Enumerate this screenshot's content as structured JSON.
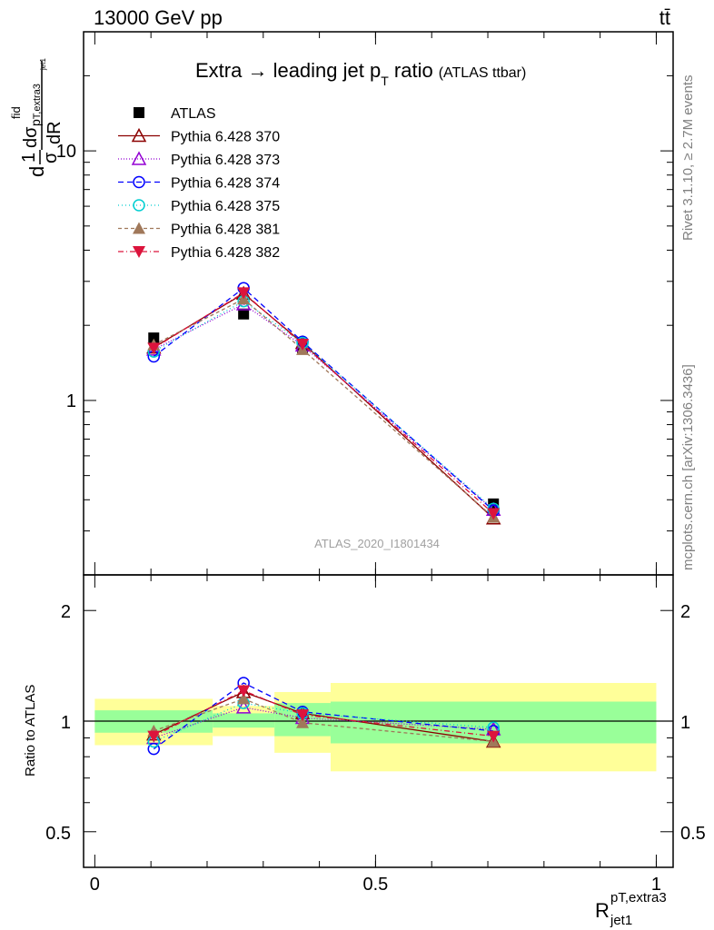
{
  "header": {
    "left": "13000 GeV pp",
    "right": "tt̄"
  },
  "side_labels": {
    "rivet": "Rivet 3.1.10, ≥ 2.7M events",
    "mcplots": "mcplots.cern.ch [arXiv:1306.3436]"
  },
  "colors": {
    "ATLAS": "#000000",
    "Pythia 6.428 370": "#8b0000",
    "Pythia 6.428 373": "#9400d3",
    "Pythia 6.428 374": "#0000ff",
    "Pythia 6.428 375": "#00ced1",
    "Pythia 6.428 381": "#a0785a",
    "Pythia 6.428 382": "#dc143c",
    "band_inner": "#99ff99",
    "band_outer": "#ffff99"
  },
  "chart_data": [
    {
      "type": "line",
      "title": "Extra → leading jet p",
      "title_sub": "T",
      "title_tail": " ratio",
      "title_small": "(ATLAS ttbar)",
      "ylabel": {
        "frac1_num": "1",
        "frac1_den": "σ",
        "d1": "d",
        "sigma": "σ",
        "sigma_sup": "fid",
        "sigma_sub": "p",
        "sub2": "T,extra3",
        "sub3": "jet1",
        "frac2_den": "dR"
      },
      "watermark": "ATLAS_2020_I1801434",
      "yscale": "log",
      "xlim": [
        -0.02,
        1.03
      ],
      "ylim": [
        0.2,
        30
      ],
      "yticks": [
        {
          "v": 1,
          "label": "1"
        },
        {
          "v": 10,
          "label": "10"
        }
      ],
      "x": [
        0.105,
        0.265,
        0.37,
        0.71
      ],
      "series": [
        {
          "name": "ATLAS",
          "marker": "square",
          "dash": "",
          "values": [
            1.78,
            2.22,
            1.62,
            0.385
          ]
        },
        {
          "name": "Pythia 6.428 370",
          "marker": "triangle-open",
          "dash": "",
          "values": [
            1.63,
            2.68,
            1.7,
            0.337
          ]
        },
        {
          "name": "Pythia 6.428 373",
          "marker": "triangle-open",
          "dash": "1,2",
          "values": [
            1.6,
            2.43,
            1.66,
            0.365
          ]
        },
        {
          "name": "Pythia 6.428 374",
          "marker": "circle-open",
          "dash": "6,4",
          "values": [
            1.5,
            2.82,
            1.72,
            0.362
          ]
        },
        {
          "name": "Pythia 6.428 375",
          "marker": "circle-open",
          "dash": "1,3",
          "values": [
            1.57,
            2.5,
            1.7,
            0.368
          ]
        },
        {
          "name": "Pythia 6.428 381",
          "marker": "triangle-filled",
          "dash": "4,3",
          "values": [
            1.67,
            2.55,
            1.6,
            0.34
          ]
        },
        {
          "name": "Pythia 6.428 382",
          "marker": "triangle-down-filled",
          "dash": "6,3,1,3",
          "values": [
            1.62,
            2.7,
            1.68,
            0.352
          ]
        }
      ]
    },
    {
      "type": "line",
      "ylabel": "Ratio to ATLAS",
      "xlabel": "R",
      "xlabel_sup": "pT,extra3",
      "xlabel_sub": "jet1",
      "yscale": "log",
      "xlim": [
        -0.02,
        1.03
      ],
      "ylim": [
        0.4,
        2.5
      ],
      "xticks": [
        {
          "v": 0,
          "label": "0"
        },
        {
          "v": 0.5,
          "label": "0.5"
        },
        {
          "v": 1,
          "label": "1"
        }
      ],
      "yticks": [
        {
          "v": 0.5,
          "label": "0.5"
        },
        {
          "v": 1,
          "label": "1"
        },
        {
          "v": 2,
          "label": "2"
        }
      ],
      "bins": [
        {
          "lo": 0.0,
          "hi": 0.21,
          "inner": [
            0.93,
            1.07
          ],
          "outer": [
            0.86,
            1.15
          ]
        },
        {
          "lo": 0.21,
          "hi": 0.32,
          "inner": [
            0.96,
            1.05
          ],
          "outer": [
            0.91,
            1.1
          ]
        },
        {
          "lo": 0.32,
          "hi": 0.42,
          "inner": [
            0.91,
            1.12
          ],
          "outer": [
            0.82,
            1.2
          ]
        },
        {
          "lo": 0.42,
          "hi": 1.0,
          "inner": [
            0.87,
            1.13
          ],
          "outer": [
            0.73,
            1.27
          ]
        }
      ],
      "x": [
        0.105,
        0.265,
        0.37,
        0.71
      ],
      "series": [
        {
          "name": "Pythia 6.428 370",
          "values": [
            0.92,
            1.2,
            1.05,
            0.88
          ]
        },
        {
          "name": "Pythia 6.428 373",
          "values": [
            0.9,
            1.09,
            1.02,
            0.95
          ]
        },
        {
          "name": "Pythia 6.428 374",
          "values": [
            0.84,
            1.27,
            1.06,
            0.94
          ]
        },
        {
          "name": "Pythia 6.428 375",
          "values": [
            0.88,
            1.12,
            1.05,
            0.96
          ]
        },
        {
          "name": "Pythia 6.428 381",
          "values": [
            0.94,
            1.15,
            0.99,
            0.88
          ]
        },
        {
          "name": "Pythia 6.428 382",
          "values": [
            0.91,
            1.21,
            1.04,
            0.91
          ]
        }
      ]
    }
  ]
}
